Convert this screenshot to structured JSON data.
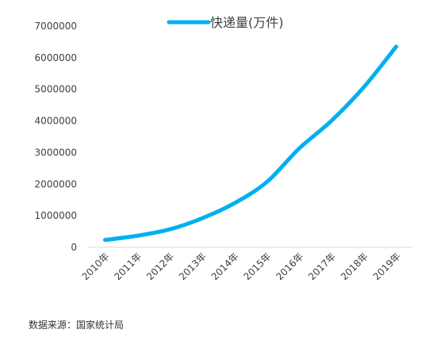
{
  "colors": {
    "series": "#00B0F0",
    "text": "#404040",
    "axis": "#D9D9D9"
  },
  "chart_data": {
    "type": "line",
    "x": [
      "2010年",
      "2011年",
      "2012年",
      "2013年",
      "2014年",
      "2015年",
      "2016年",
      "2017年",
      "2018年",
      "2019年"
    ],
    "series": [
      {
        "name": "快递量(万件)",
        "values": [
          234000,
          367000,
          569000,
          918700,
          1395900,
          2067000,
          3128300,
          4005600,
          5071000,
          6352300
        ]
      }
    ],
    "ylim": [
      0,
      7000000
    ],
    "yticks": [
      0,
      1000000,
      2000000,
      3000000,
      4000000,
      5000000,
      6000000,
      7000000
    ],
    "title": "",
    "xlabel": "",
    "ylabel": "",
    "grid": false,
    "legend_position": "top-center"
  },
  "source_note": "数据来源：国家统计局"
}
